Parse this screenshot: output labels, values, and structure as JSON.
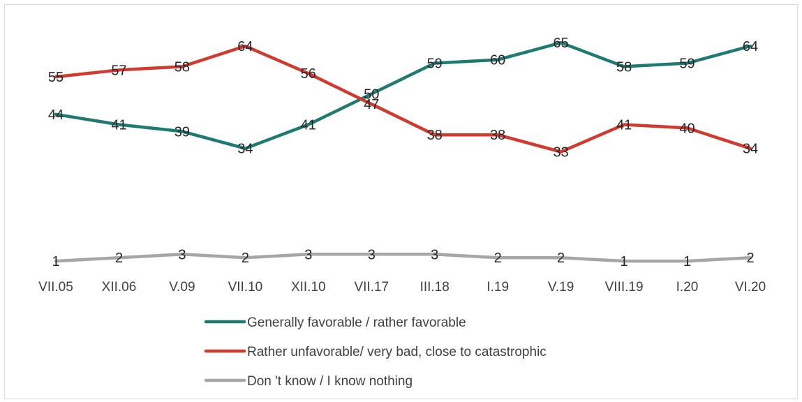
{
  "chart_data": {
    "type": "line",
    "categories": [
      "VII.05",
      "XII.06",
      "V.09",
      "VII.10",
      "XII.10",
      "VII.17",
      "III.18",
      "I.19",
      "V.19",
      "VIII.19",
      "I.20",
      "VI.20"
    ],
    "series": [
      {
        "name": "Generally favorable / rather favorable",
        "color": "#1f7a73",
        "values": [
          44,
          41,
          39,
          34,
          41,
          50,
          59,
          60,
          65,
          58,
          59,
          64
        ]
      },
      {
        "name": "Rather unfavorable/ very bad, close to catastrophic",
        "color": "#d13b2f",
        "values": [
          55,
          57,
          58,
          64,
          56,
          47,
          38,
          38,
          33,
          41,
          40,
          34
        ]
      },
      {
        "name": "Don 't know / I know nothing",
        "color": "#a6a6a6",
        "values": [
          1,
          2,
          3,
          2,
          3,
          3,
          3,
          2,
          2,
          1,
          1,
          2
        ]
      }
    ],
    "ylim": [
      0,
      70
    ],
    "grid": false,
    "legend_position": "bottom",
    "data_labels": true
  }
}
